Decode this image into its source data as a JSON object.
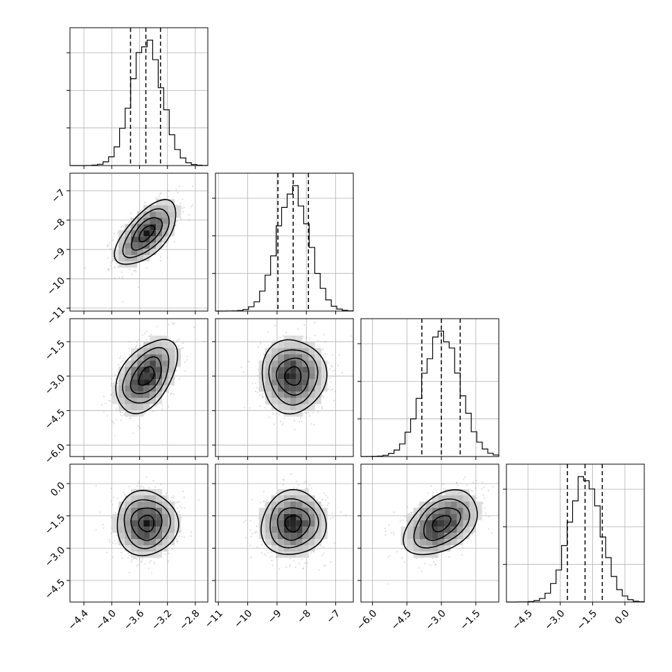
{
  "chart_data": {
    "type": "corner",
    "n_params": 4,
    "grid": true,
    "params": [
      {
        "mean": -3.5,
        "sd": 0.22,
        "lim": [
          -4.6,
          -2.62
        ],
        "ticks": [
          -4.4,
          -4.0,
          -3.6,
          -3.2,
          -2.8
        ],
        "tick_labels": [
          "−4.4",
          "−4.0",
          "−3.6",
          "−3.2",
          "−2.8"
        ],
        "quantiles": [
          -3.73,
          -3.51,
          -3.3
        ]
      },
      {
        "mean": -8.45,
        "sd": 0.55,
        "lim": [
          -11.1,
          -6.4
        ],
        "ticks": [
          -11,
          -10,
          -9,
          -8,
          -7
        ],
        "tick_labels": [
          "−11",
          "−10",
          "−9",
          "−8",
          "−7"
        ],
        "quantiles": [
          -8.97,
          -8.45,
          -7.93
        ]
      },
      {
        "mean": -3.0,
        "sd": 0.8,
        "lim": [
          -6.5,
          -0.5
        ],
        "ticks": [
          -6.0,
          -4.5,
          -3.0,
          -1.5
        ],
        "tick_labels": [
          "−6.0",
          "−4.5",
          "−3.0",
          "−1.5"
        ],
        "quantiles": [
          -3.85,
          -3.0,
          -2.18
        ]
      },
      {
        "mean": -1.85,
        "sd": 0.75,
        "lim": [
          -5.5,
          0.9
        ],
        "ticks": [
          -4.5,
          -3.0,
          -1.5,
          0.0
        ],
        "tick_labels": [
          "−4.5",
          "−3.0",
          "−1.5",
          "0.0"
        ],
        "quantiles": [
          -2.67,
          -1.85,
          -1.05
        ]
      }
    ],
    "correlations": [
      [
        1.0,
        0.62,
        0.45,
        0.0
      ],
      [
        0.62,
        1.0,
        0.0,
        0.05
      ],
      [
        0.45,
        0.0,
        1.0,
        0.42
      ],
      [
        0.0,
        0.05,
        0.42,
        1.0
      ]
    ]
  }
}
